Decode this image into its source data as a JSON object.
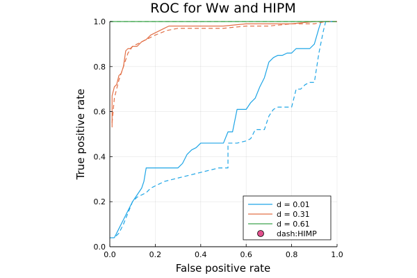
{
  "chart_data": {
    "type": "line",
    "title": "ROC for Ww and HIPM",
    "xlabel": "False positive rate",
    "ylabel": "True positive rate",
    "xlim": [
      0,
      1
    ],
    "ylim": [
      0,
      1
    ],
    "xticks": [
      0.0,
      0.2,
      0.4,
      0.6,
      0.8,
      1.0
    ],
    "yticks": [
      0.0,
      0.2,
      0.4,
      0.6,
      0.8,
      1.0
    ],
    "xtick_labels": [
      "0.0",
      "0.2",
      "0.4",
      "0.6",
      "0.8",
      "1.0"
    ],
    "ytick_labels": [
      "0.0",
      "0.2",
      "0.4",
      "0.6",
      "0.8",
      "1.0"
    ],
    "grid": true,
    "legend_position": "bottom-right",
    "colors": {
      "d001": "#1ea5e6",
      "d031": "#e26f46",
      "d061": "#3da44d",
      "marker": "#e04f8b"
    },
    "series": [
      {
        "name": "d = 0.01",
        "style": "solid",
        "color": "#1ea5e6",
        "x": [
          0.0,
          0.02,
          0.04,
          0.06,
          0.08,
          0.1,
          0.12,
          0.14,
          0.15,
          0.16,
          0.18,
          0.2,
          0.22,
          0.24,
          0.26,
          0.28,
          0.3,
          0.32,
          0.34,
          0.36,
          0.38,
          0.4,
          0.42,
          0.44,
          0.46,
          0.48,
          0.5,
          0.52,
          0.54,
          0.56,
          0.58,
          0.6,
          0.62,
          0.64,
          0.66,
          0.68,
          0.7,
          0.72,
          0.74,
          0.76,
          0.78,
          0.8,
          0.82,
          0.84,
          0.86,
          0.88,
          0.9,
          0.92,
          0.93,
          1.0
        ],
        "y": [
          0.04,
          0.04,
          0.08,
          0.12,
          0.16,
          0.2,
          0.23,
          0.26,
          0.29,
          0.35,
          0.35,
          0.35,
          0.35,
          0.35,
          0.35,
          0.35,
          0.35,
          0.37,
          0.41,
          0.43,
          0.44,
          0.46,
          0.46,
          0.46,
          0.46,
          0.46,
          0.46,
          0.51,
          0.51,
          0.61,
          0.61,
          0.61,
          0.64,
          0.66,
          0.71,
          0.75,
          0.82,
          0.84,
          0.85,
          0.85,
          0.86,
          0.86,
          0.88,
          0.88,
          0.88,
          0.88,
          0.9,
          0.97,
          1.0,
          1.0
        ]
      },
      {
        "name": "d = 0.31",
        "style": "solid",
        "color": "#e26f46",
        "x": [
          0.01,
          0.01,
          0.02,
          0.03,
          0.04,
          0.05,
          0.06,
          0.07,
          0.08,
          0.09,
          0.1,
          0.12,
          0.14,
          0.16,
          0.18,
          0.2,
          0.22,
          0.24,
          0.26,
          0.28,
          0.3,
          0.35,
          0.4,
          0.5,
          0.6,
          0.7,
          0.8,
          0.9,
          1.0
        ],
        "y": [
          0.53,
          0.67,
          0.71,
          0.72,
          0.76,
          0.77,
          0.8,
          0.87,
          0.88,
          0.88,
          0.89,
          0.89,
          0.91,
          0.92,
          0.94,
          0.95,
          0.96,
          0.97,
          0.98,
          0.98,
          0.98,
          0.98,
          0.98,
          0.98,
          0.99,
          0.99,
          0.99,
          1.0,
          1.0
        ]
      },
      {
        "name": "d = 0.61",
        "style": "solid",
        "color": "#3da44d",
        "x": [
          0.0,
          1.0
        ],
        "y": [
          1.0,
          1.0
        ]
      },
      {
        "style": "dashed",
        "color": "#1ea5e6",
        "x": [
          0.0,
          0.02,
          0.04,
          0.06,
          0.08,
          0.1,
          0.12,
          0.14,
          0.16,
          0.18,
          0.2,
          0.24,
          0.28,
          0.32,
          0.36,
          0.4,
          0.44,
          0.48,
          0.5,
          0.52,
          0.52,
          0.56,
          0.6,
          0.62,
          0.64,
          0.66,
          0.68,
          0.7,
          0.72,
          0.74,
          0.76,
          0.78,
          0.8,
          0.82,
          0.84,
          0.86,
          0.88,
          0.9,
          0.92,
          0.94,
          0.95,
          1.0
        ],
        "y": [
          0.04,
          0.04,
          0.06,
          0.1,
          0.15,
          0.2,
          0.22,
          0.23,
          0.24,
          0.26,
          0.27,
          0.29,
          0.3,
          0.31,
          0.32,
          0.33,
          0.34,
          0.35,
          0.35,
          0.35,
          0.46,
          0.46,
          0.47,
          0.48,
          0.52,
          0.52,
          0.52,
          0.58,
          0.61,
          0.62,
          0.62,
          0.62,
          0.62,
          0.7,
          0.7,
          0.72,
          0.73,
          0.73,
          0.86,
          0.96,
          1.0,
          1.0
        ]
      },
      {
        "style": "dashed",
        "color": "#e26f46",
        "x": [
          0.01,
          0.02,
          0.03,
          0.04,
          0.05,
          0.06,
          0.07,
          0.08,
          0.1,
          0.12,
          0.14,
          0.16,
          0.18,
          0.2,
          0.25,
          0.3,
          0.4,
          0.5,
          0.6,
          0.7,
          0.8,
          0.85,
          0.9,
          0.95,
          1.0
        ],
        "y": [
          0.55,
          0.66,
          0.7,
          0.74,
          0.77,
          0.8,
          0.83,
          0.86,
          0.89,
          0.9,
          0.91,
          0.92,
          0.93,
          0.94,
          0.96,
          0.97,
          0.97,
          0.97,
          0.98,
          0.98,
          0.99,
          0.99,
          0.99,
          1.0,
          1.0
        ]
      },
      {
        "style": "dashed",
        "color": "#3da44d",
        "x": [
          0.0,
          1.0
        ],
        "y": [
          1.0,
          1.0
        ]
      }
    ],
    "legend": [
      {
        "label": "d = 0.01",
        "kind": "line",
        "color": "#1ea5e6"
      },
      {
        "label": "d = 0.31",
        "kind": "line",
        "color": "#e26f46"
      },
      {
        "label": "d = 0.61",
        "kind": "line",
        "color": "#3da44d"
      },
      {
        "label": "dash:HIMP",
        "kind": "marker",
        "color": "#e04f8b"
      }
    ]
  }
}
